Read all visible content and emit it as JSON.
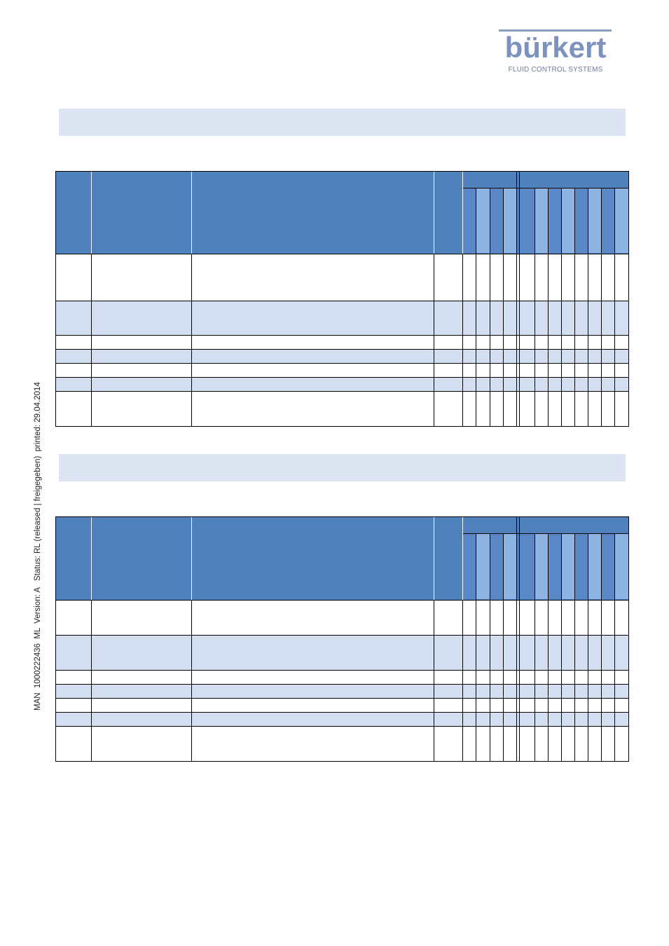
{
  "logo": {
    "wordmark": "bürkert",
    "tagline": "FLUID CONTROL SYSTEMS",
    "color": "#7d92bc"
  },
  "side_note": "MAN  1000222436  ML  Version: A   Status: RL (released | freigegeben)  printed: 29.04.2014",
  "colors": {
    "section_bar": "#dce5f1",
    "header_blue": "#4f81bd",
    "subheader_light": "#8db3e2",
    "subheader_dark": "#5a88c6",
    "row_tint": "#d3dff0"
  },
  "tables": [
    {
      "title": "",
      "rows": 7
    },
    {
      "title": "",
      "rows": 7
    }
  ]
}
